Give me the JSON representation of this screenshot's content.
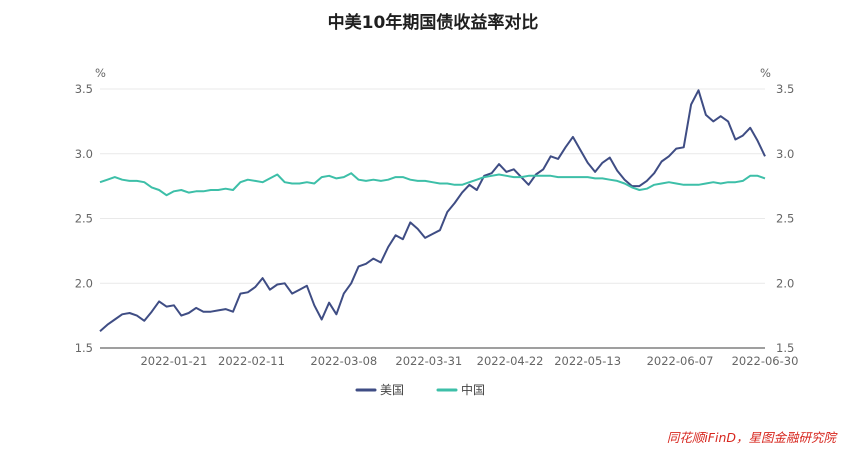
{
  "chart_data": {
    "type": "line",
    "title": "中美10年期国债收益率对比",
    "y_unit_left": "%",
    "y_unit_right": "%",
    "ylim": [
      1.5,
      3.5
    ],
    "y_ticks": [
      "1.5",
      "2.0",
      "2.5",
      "3.0",
      "3.5"
    ],
    "xlim": [
      "2022-01-01",
      "2022-06-30"
    ],
    "x_ticks": [
      "2022-01-21",
      "2022-02-11",
      "2022-03-08",
      "2022-03-31",
      "2022-04-22",
      "2022-05-13",
      "2022-06-07",
      "2022-06-30"
    ],
    "grid": true,
    "legend_position": "bottom-center",
    "series": [
      {
        "name": "美国",
        "color": "#3f4d84",
        "x": [
          "2022-01-01",
          "2022-01-03",
          "2022-01-05",
          "2022-01-07",
          "2022-01-09",
          "2022-01-11",
          "2022-01-13",
          "2022-01-15",
          "2022-01-17",
          "2022-01-19",
          "2022-01-21",
          "2022-01-23",
          "2022-01-25",
          "2022-01-27",
          "2022-01-29",
          "2022-01-31",
          "2022-02-02",
          "2022-02-04",
          "2022-02-06",
          "2022-02-08",
          "2022-02-10",
          "2022-02-12",
          "2022-02-14",
          "2022-02-16",
          "2022-02-18",
          "2022-02-20",
          "2022-02-22",
          "2022-02-24",
          "2022-02-26",
          "2022-02-28",
          "2022-03-02",
          "2022-03-04",
          "2022-03-06",
          "2022-03-08",
          "2022-03-10",
          "2022-03-12",
          "2022-03-14",
          "2022-03-16",
          "2022-03-18",
          "2022-03-20",
          "2022-03-22",
          "2022-03-24",
          "2022-03-26",
          "2022-03-28",
          "2022-03-30",
          "2022-04-01",
          "2022-04-03",
          "2022-04-05",
          "2022-04-07",
          "2022-04-09",
          "2022-04-11",
          "2022-04-13",
          "2022-04-15",
          "2022-04-17",
          "2022-04-19",
          "2022-04-21",
          "2022-04-23",
          "2022-04-25",
          "2022-04-27",
          "2022-04-29",
          "2022-05-01",
          "2022-05-03",
          "2022-05-05",
          "2022-05-07",
          "2022-05-09",
          "2022-05-11",
          "2022-05-13",
          "2022-05-15",
          "2022-05-17",
          "2022-05-19",
          "2022-05-21",
          "2022-05-23",
          "2022-05-25",
          "2022-05-27",
          "2022-05-29",
          "2022-05-31",
          "2022-06-02",
          "2022-06-04",
          "2022-06-06",
          "2022-06-08",
          "2022-06-10",
          "2022-06-12",
          "2022-06-14",
          "2022-06-16",
          "2022-06-18",
          "2022-06-20",
          "2022-06-22",
          "2022-06-24",
          "2022-06-26",
          "2022-06-28",
          "2022-06-30"
        ],
        "values": [
          1.63,
          1.68,
          1.72,
          1.76,
          1.77,
          1.75,
          1.71,
          1.78,
          1.86,
          1.82,
          1.83,
          1.75,
          1.77,
          1.81,
          1.78,
          1.78,
          1.79,
          1.8,
          1.78,
          1.92,
          1.93,
          1.97,
          2.04,
          1.95,
          1.99,
          2.0,
          1.92,
          1.95,
          1.98,
          1.83,
          1.72,
          1.85,
          1.76,
          1.92,
          2.0,
          2.13,
          2.15,
          2.19,
          2.16,
          2.28,
          2.37,
          2.34,
          2.47,
          2.42,
          2.35,
          2.38,
          2.41,
          2.55,
          2.62,
          2.7,
          2.76,
          2.72,
          2.83,
          2.85,
          2.92,
          2.86,
          2.88,
          2.82,
          2.76,
          2.84,
          2.88,
          2.98,
          2.96,
          3.05,
          3.13,
          3.03,
          2.93,
          2.86,
          2.93,
          2.97,
          2.87,
          2.8,
          2.75,
          2.75,
          2.79,
          2.85,
          2.94,
          2.98,
          3.04,
          3.05,
          3.38,
          3.49,
          3.3,
          3.25,
          3.29,
          3.25,
          3.11,
          3.14,
          3.2,
          3.1,
          2.98
        ]
      },
      {
        "name": "中国",
        "color": "#3dbfa8",
        "x": [
          "2022-01-01",
          "2022-01-03",
          "2022-01-05",
          "2022-01-07",
          "2022-01-09",
          "2022-01-11",
          "2022-01-13",
          "2022-01-15",
          "2022-01-17",
          "2022-01-19",
          "2022-01-21",
          "2022-01-23",
          "2022-01-25",
          "2022-01-27",
          "2022-01-29",
          "2022-01-31",
          "2022-02-02",
          "2022-02-04",
          "2022-02-06",
          "2022-02-08",
          "2022-02-10",
          "2022-02-12",
          "2022-02-14",
          "2022-02-16",
          "2022-02-18",
          "2022-02-20",
          "2022-02-22",
          "2022-02-24",
          "2022-02-26",
          "2022-02-28",
          "2022-03-02",
          "2022-03-04",
          "2022-03-06",
          "2022-03-08",
          "2022-03-10",
          "2022-03-12",
          "2022-03-14",
          "2022-03-16",
          "2022-03-18",
          "2022-03-20",
          "2022-03-22",
          "2022-03-24",
          "2022-03-26",
          "2022-03-28",
          "2022-03-30",
          "2022-04-01",
          "2022-04-03",
          "2022-04-05",
          "2022-04-07",
          "2022-04-09",
          "2022-04-11",
          "2022-04-13",
          "2022-04-15",
          "2022-04-17",
          "2022-04-19",
          "2022-04-21",
          "2022-04-23",
          "2022-04-25",
          "2022-04-27",
          "2022-04-29",
          "2022-05-01",
          "2022-05-03",
          "2022-05-05",
          "2022-05-07",
          "2022-05-09",
          "2022-05-11",
          "2022-05-13",
          "2022-05-15",
          "2022-05-17",
          "2022-05-19",
          "2022-05-21",
          "2022-05-23",
          "2022-05-25",
          "2022-05-27",
          "2022-05-29",
          "2022-05-31",
          "2022-06-02",
          "2022-06-04",
          "2022-06-06",
          "2022-06-08",
          "2022-06-10",
          "2022-06-12",
          "2022-06-14",
          "2022-06-16",
          "2022-06-18",
          "2022-06-20",
          "2022-06-22",
          "2022-06-24",
          "2022-06-26",
          "2022-06-28",
          "2022-06-30"
        ],
        "values": [
          2.78,
          2.8,
          2.82,
          2.8,
          2.79,
          2.79,
          2.78,
          2.74,
          2.72,
          2.68,
          2.71,
          2.72,
          2.7,
          2.71,
          2.71,
          2.72,
          2.72,
          2.73,
          2.72,
          2.78,
          2.8,
          2.79,
          2.78,
          2.81,
          2.84,
          2.78,
          2.77,
          2.77,
          2.78,
          2.77,
          2.82,
          2.83,
          2.81,
          2.82,
          2.85,
          2.8,
          2.79,
          2.8,
          2.79,
          2.8,
          2.82,
          2.82,
          2.8,
          2.79,
          2.79,
          2.78,
          2.77,
          2.77,
          2.76,
          2.76,
          2.78,
          2.8,
          2.82,
          2.83,
          2.84,
          2.83,
          2.82,
          2.82,
          2.83,
          2.83,
          2.83,
          2.83,
          2.82,
          2.82,
          2.82,
          2.82,
          2.82,
          2.81,
          2.81,
          2.8,
          2.79,
          2.77,
          2.74,
          2.72,
          2.73,
          2.76,
          2.77,
          2.78,
          2.77,
          2.76,
          2.76,
          2.76,
          2.77,
          2.78,
          2.77,
          2.78,
          2.78,
          2.79,
          2.83,
          2.83,
          2.81
        ]
      }
    ]
  },
  "source_text": "同花顺iFinD，星图金融研究院"
}
